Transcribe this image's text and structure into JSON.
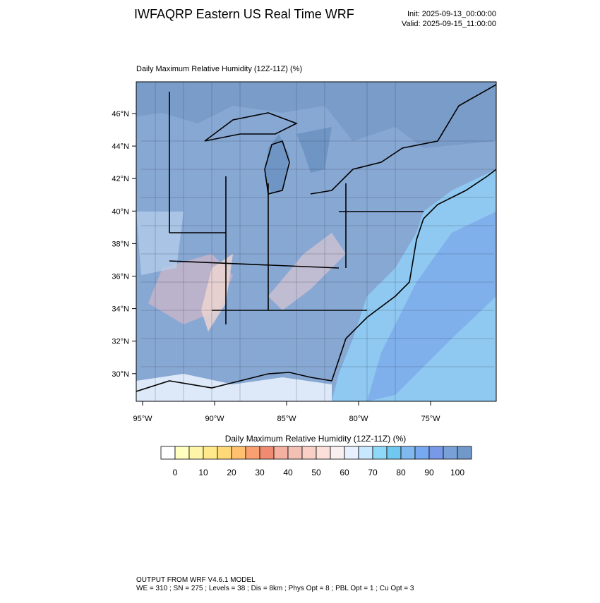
{
  "header": {
    "title": "IWFAQRP Eastern US Real Time WRF",
    "init": "Init: 2025-09-13_00:00:00",
    "valid": "Valid: 2025-09-15_11:00:00"
  },
  "map": {
    "label": "Daily Maximum Relative Humidity (12Z-11Z)   (%)",
    "lat_labels": [
      "46°N",
      "44°N",
      "42°N",
      "40°N",
      "38°N",
      "36°N",
      "34°N",
      "32°N",
      "30°N"
    ],
    "lon_labels": [
      "95°W",
      "90°W",
      "85°W",
      "80°W",
      "75°W"
    ]
  },
  "colorbar": {
    "title": "Daily Maximum Relative Humidity (12Z-11Z)  (%)",
    "labels": [
      "0",
      "10",
      "20",
      "30",
      "40",
      "50",
      "60",
      "70",
      "80",
      "90",
      "100"
    ],
    "colors": [
      "#ffffff",
      "#ffffc0",
      "#fff5a8",
      "#ffe98a",
      "#ffd878",
      "#ffc070",
      "#f8a070",
      "#f08a70",
      "#f4b0a0",
      "#f4c0b4",
      "#f8d0c6",
      "#fae0d8",
      "#f8f0f0",
      "#e8f0ff",
      "#c8e8ff",
      "#8fd8f8",
      "#70c8f0",
      "#80b8f0",
      "#78a8f0",
      "#7898e8",
      "#7aa0d8",
      "#7098c8"
    ]
  },
  "footer": {
    "line1": "OUTPUT FROM WRF V4.6.1 MODEL",
    "line2": "WE = 310 ; SN = 275 ; Levels = 38 ; Dis = 8km ; Phys Opt = 8 ; PBL Opt = 1 ; Cu Opt = 3"
  }
}
